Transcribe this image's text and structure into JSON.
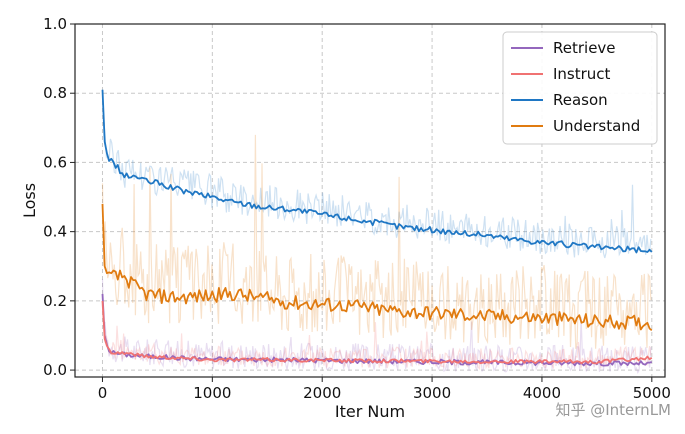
{
  "chart_data": {
    "type": "line",
    "title": "",
    "xlabel": "Iter Num",
    "ylabel": "Loss",
    "xlim": [
      -250,
      5120
    ],
    "ylim": [
      -0.02,
      1.0
    ],
    "xticks": [
      0,
      1000,
      2000,
      3000,
      4000,
      5000
    ],
    "yticks": [
      0.0,
      0.2,
      0.4,
      0.6,
      0.8,
      1.0
    ],
    "xtick_labels": [
      "0",
      "1000",
      "2000",
      "3000",
      "4000",
      "5000"
    ],
    "ytick_labels": [
      "0.0",
      "0.2",
      "0.4",
      "0.6",
      "0.8",
      "1.0"
    ],
    "grid": true,
    "legend_position": "top-right",
    "series": [
      {
        "name": "Retrieve",
        "color": "#9467bd",
        "x": [
          0,
          20,
          50,
          100,
          200,
          400,
          700,
          1000,
          1500,
          2000,
          2500,
          3000,
          3500,
          4000,
          4500,
          5000
        ],
        "values": [
          0.22,
          0.1,
          0.06,
          0.05,
          0.045,
          0.04,
          0.035,
          0.032,
          0.03,
          0.028,
          0.026,
          0.024,
          0.022,
          0.021,
          0.02,
          0.019
        ],
        "noise_band": 0.04
      },
      {
        "name": "Instruct",
        "color": "#f07272",
        "x": [
          0,
          20,
          50,
          100,
          200,
          400,
          700,
          1000,
          1500,
          2000,
          2500,
          3000,
          3500,
          4000,
          4500,
          5000
        ],
        "values": [
          0.2,
          0.09,
          0.06,
          0.05,
          0.05,
          0.04,
          0.035,
          0.03,
          0.03,
          0.028,
          0.027,
          0.026,
          0.025,
          0.024,
          0.024,
          0.035
        ],
        "noise_band": 0.03
      },
      {
        "name": "Reason",
        "color": "#1f77c4",
        "x": [
          0,
          20,
          50,
          100,
          200,
          300,
          400,
          500,
          700,
          1000,
          1200,
          1500,
          1700,
          2000,
          2300,
          2500,
          2700,
          3000,
          3300,
          3500,
          3700,
          4000,
          4300,
          4500,
          4700,
          5000
        ],
        "values": [
          0.81,
          0.66,
          0.61,
          0.6,
          0.56,
          0.56,
          0.545,
          0.54,
          0.52,
          0.5,
          0.485,
          0.47,
          0.465,
          0.45,
          0.435,
          0.425,
          0.415,
          0.405,
          0.395,
          0.39,
          0.38,
          0.37,
          0.36,
          0.355,
          0.35,
          0.345
        ],
        "noise_band": 0.05
      },
      {
        "name": "Understand",
        "color": "#e07b10",
        "x": [
          0,
          20,
          50,
          100,
          200,
          300,
          400,
          500,
          700,
          1000,
          1200,
          1500,
          1700,
          2000,
          2300,
          2500,
          2700,
          3000,
          3300,
          3500,
          3700,
          4000,
          4300,
          4500,
          4700,
          5000
        ],
        "values": [
          0.48,
          0.3,
          0.27,
          0.27,
          0.27,
          0.24,
          0.22,
          0.215,
          0.21,
          0.215,
          0.22,
          0.205,
          0.195,
          0.19,
          0.185,
          0.175,
          0.17,
          0.165,
          0.16,
          0.155,
          0.155,
          0.15,
          0.145,
          0.14,
          0.14,
          0.135
        ],
        "noise_band": 0.12
      }
    ]
  },
  "watermark": "知乎 @InternLM"
}
